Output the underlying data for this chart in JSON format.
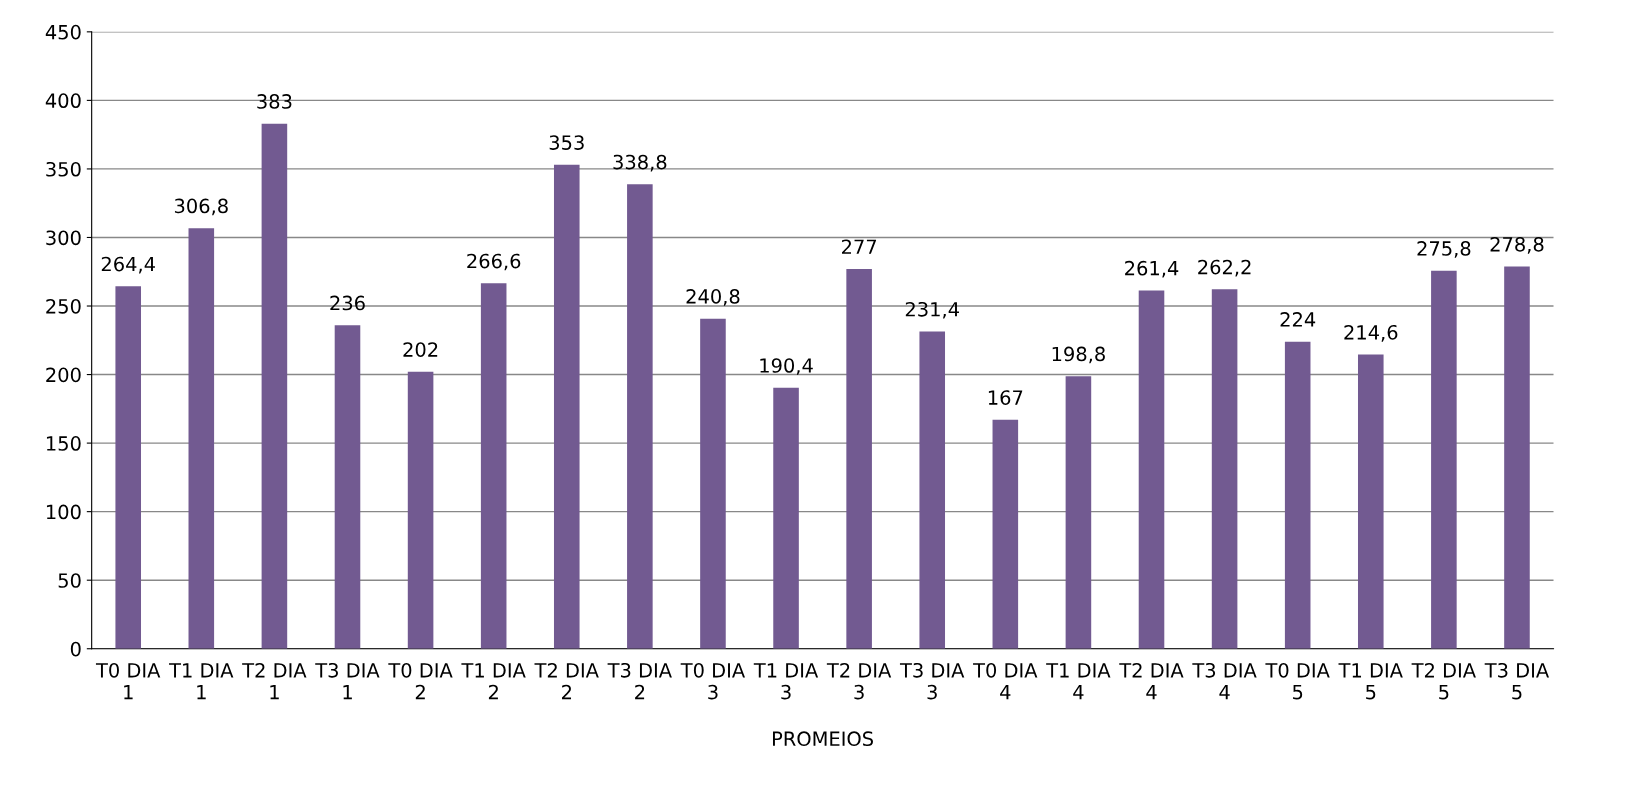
{
  "chart_data": {
    "type": "bar",
    "categories": [
      "T0 DIA 1",
      "T1 DIA 1",
      "T2 DIA 1",
      "T3 DIA 1",
      "T0 DIA 2",
      "T1 DIA 2",
      "T2 DIA 2",
      "T3 DIA 2",
      "T0 DIA 3",
      "T1 DIA 3",
      "T2 DIA 3",
      "T3 DIA 3",
      "T0 DIA 4",
      "T1 DIA 4",
      "T2 DIA 4",
      "T3 DIA 4",
      "T0 DIA 5",
      "T1 DIA 5",
      "T2 DIA 5",
      "T3 DIA 5"
    ],
    "values": [
      264.4,
      306.8,
      383,
      236,
      202,
      266.6,
      353,
      338.8,
      240.8,
      190.4,
      277,
      231.4,
      167,
      198.8,
      261.4,
      262.2,
      224,
      214.6,
      275.8,
      278.8
    ],
    "value_labels": [
      "264,4",
      "306,8",
      "383",
      "236",
      "202",
      "266,6",
      "353",
      "338,8",
      "240,8",
      "190,4",
      "277",
      "231,4",
      "167",
      "198,8",
      "261,4",
      "262,2",
      "224",
      "214,6",
      "275,8",
      "278,8"
    ],
    "color": "#725a91",
    "xlabel": "PROMEIOS",
    "ylim": [
      0,
      450
    ],
    "yticks": [
      0,
      50,
      100,
      150,
      200,
      250,
      300,
      350,
      400,
      450
    ],
    "grid": "y"
  }
}
